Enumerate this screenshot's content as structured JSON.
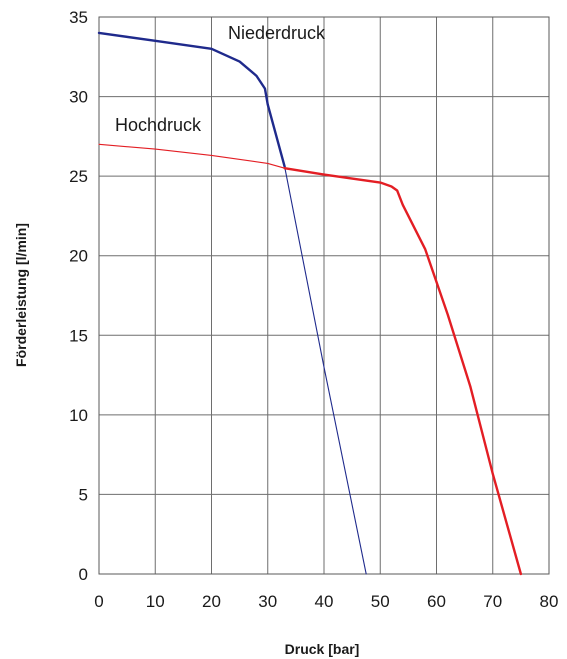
{
  "chart_data": {
    "type": "line",
    "xlabel": "Druck [bar]",
    "ylabel": "Förderleistung [l/min]",
    "xlim": [
      0,
      80
    ],
    "ylim": [
      0,
      35
    ],
    "xticks": [
      0,
      10,
      20,
      30,
      40,
      50,
      60,
      70,
      80
    ],
    "yticks": [
      0,
      5,
      10,
      15,
      20,
      25,
      30,
      35
    ],
    "grid": true,
    "series": [
      {
        "name": "Niederdruck",
        "color": "#1f2a8c",
        "x": [
          0,
          10,
          20,
          25,
          28,
          29.5,
          30,
          33,
          40,
          47.5
        ],
        "y": [
          34,
          33.5,
          33,
          32.2,
          31.3,
          30.5,
          29.5,
          25.6,
          13,
          0
        ],
        "bold_until_x": 33
      },
      {
        "name": "Hochdruck",
        "color": "#e31e24",
        "x": [
          0,
          10,
          20,
          30,
          33,
          40,
          50,
          52,
          53,
          54,
          58,
          62,
          66,
          70,
          75
        ],
        "y": [
          27,
          26.7,
          26.3,
          25.8,
          25.5,
          25.1,
          24.6,
          24.35,
          24.1,
          23.2,
          20.4,
          16.3,
          11.8,
          6.3,
          0
        ],
        "bold_from_x": 33
      }
    ]
  }
}
